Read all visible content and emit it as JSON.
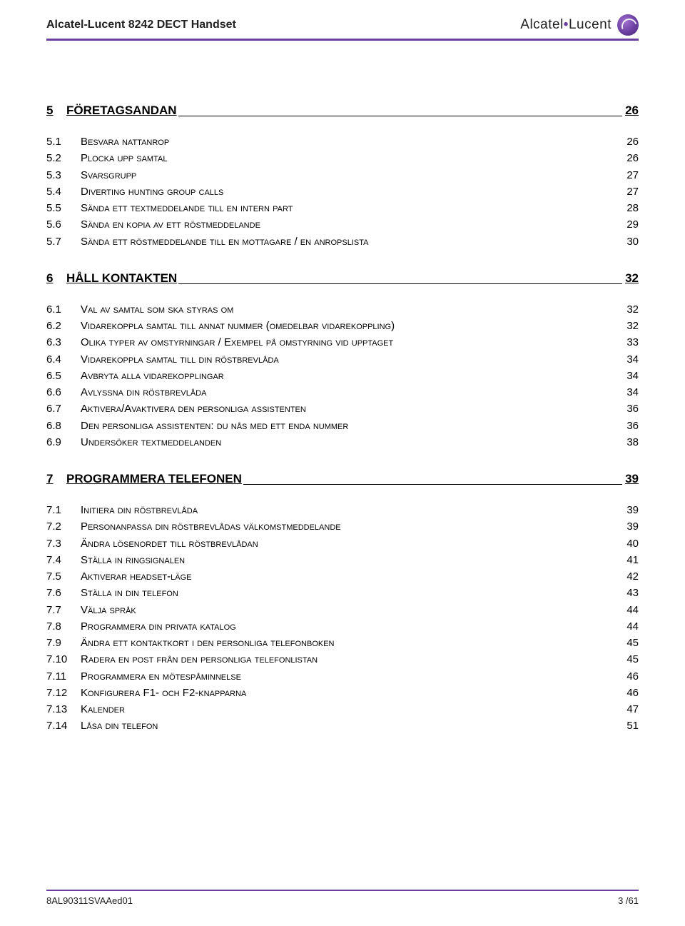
{
  "header": {
    "product_title": "Alcatel-Lucent 8242 DECT Handset",
    "brand_prefix": "Alcatel",
    "brand_suffix": "Lucent"
  },
  "colors": {
    "accent": "#6b3fa0",
    "text": "#000000",
    "background": "#ffffff"
  },
  "typography": {
    "section_fontsize_pt": 13,
    "entry_fontsize_pt": 11,
    "header_fontsize_pt": 12
  },
  "toc": {
    "sections": [
      {
        "num": "5",
        "title": "FÖRETAGSANDAN",
        "page": "26",
        "entries": [
          {
            "num": "5.1",
            "label": "Besvara nattanrop",
            "page": "26"
          },
          {
            "num": "5.2",
            "label": "Plocka upp samtal",
            "page": "26"
          },
          {
            "num": "5.3",
            "label": "Svarsgrupp",
            "page": "27"
          },
          {
            "num": "5.4",
            "label": "Diverting hunting group calls",
            "page": "27"
          },
          {
            "num": "5.5",
            "label": "Sända ett textmeddelande till en intern part",
            "page": "28"
          },
          {
            "num": "5.6",
            "label": "Sända en kopia av ett röstmeddelande",
            "page": "29"
          },
          {
            "num": "5.7",
            "label": "Sända ett röstmeddelande till en mottagare / en anropslista",
            "page": "30"
          }
        ]
      },
      {
        "num": "6",
        "title": "HÅLL KONTAKTEN",
        "page": "32",
        "entries": [
          {
            "num": "6.1",
            "label": "Val av samtal som ska styras om",
            "page": "32"
          },
          {
            "num": "6.2",
            "label": "Vidarekoppla samtal till annat nummer (omedelbar vidarekoppling)",
            "page": "32"
          },
          {
            "num": "6.3",
            "label": "Olika typer av omstyrningar / Exempel på omstyrning vid upptaget",
            "page": "33"
          },
          {
            "num": "6.4",
            "label": "Vidarekoppla samtal till din röstbrevlåda",
            "page": "34"
          },
          {
            "num": "6.5",
            "label": "Avbryta alla vidarekopplingar",
            "page": "34"
          },
          {
            "num": "6.6",
            "label": "Avlyssna din röstbrevlåda",
            "page": "34"
          },
          {
            "num": "6.7",
            "label": "Aktivera/Avaktivera den personliga assistenten",
            "page": "36"
          },
          {
            "num": "6.8",
            "label": "Den personliga assistenten: du nås med ett enda nummer",
            "page": "36"
          },
          {
            "num": "6.9",
            "label": "Undersöker textmeddelanden",
            "page": "38"
          }
        ]
      },
      {
        "num": "7",
        "title": "PROGRAMMERA TELEFONEN",
        "page": "39",
        "entries": [
          {
            "num": "7.1",
            "label": "Initiera din röstbrevlåda",
            "page": "39"
          },
          {
            "num": "7.2",
            "label": "Personanpassa din röstbrevlådas välkomstmeddelande",
            "page": "39"
          },
          {
            "num": "7.3",
            "label": "Ändra lösenordet till röstbrevlådan",
            "page": "40"
          },
          {
            "num": "7.4",
            "label": "Ställa in ringsignalen",
            "page": "41"
          },
          {
            "num": "7.5",
            "label": "Aktiverar headset-läge",
            "page": "42"
          },
          {
            "num": "7.6",
            "label": "Ställa in din telefon",
            "page": "43"
          },
          {
            "num": "7.7",
            "label": "Välja språk",
            "page": "44"
          },
          {
            "num": "7.8",
            "label": "Programmera din privata katalog",
            "page": "44"
          },
          {
            "num": "7.9",
            "label": "Ändra ett kontaktkort i den personliga telefonboken",
            "page": "45"
          },
          {
            "num": "7.10",
            "label": "Radera en post från den personliga telefonlistan",
            "page": "45"
          },
          {
            "num": "7.11",
            "label": "Programmera en mötespåminnelse",
            "page": "46"
          },
          {
            "num": "7.12",
            "label": "Konfigurera F1- och F2-knapparna",
            "page": "46"
          },
          {
            "num": "7.13",
            "label": "Kalender",
            "page": "47"
          },
          {
            "num": "7.14",
            "label": "Låsa din telefon",
            "page": "51"
          }
        ]
      }
    ]
  },
  "footer": {
    "doc_id": "8AL90311SVAAed01",
    "page_indicator": "3 /61"
  }
}
